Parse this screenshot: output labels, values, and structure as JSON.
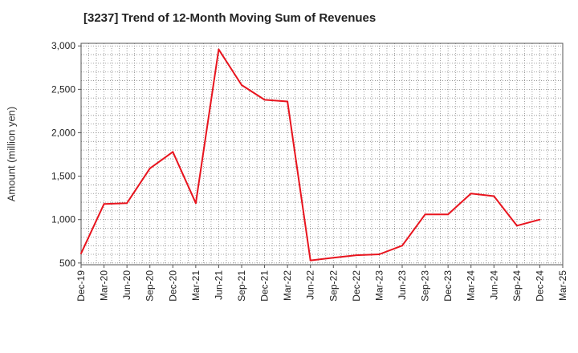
{
  "chart_data": {
    "type": "line",
    "title": "[3237]  Trend of 12-Month Moving Sum of Revenues",
    "xlabel": "",
    "ylabel": "Amount (million yen)",
    "x": [
      "Dec-19",
      "Mar-20",
      "Jun-20",
      "Sep-20",
      "Dec-20",
      "Mar-21",
      "Jun-21",
      "Sep-21",
      "Dec-21",
      "Mar-22",
      "Jun-22",
      "Sep-22",
      "Dec-22",
      "Mar-23",
      "Jun-23",
      "Sep-23",
      "Dec-23",
      "Mar-24",
      "Jun-24",
      "Sep-24",
      "Dec-24",
      "Mar-25"
    ],
    "series": [
      {
        "name": "",
        "color": "#e8141e",
        "values": [
          610,
          1180,
          1190,
          1590,
          1780,
          1190,
          2960,
          2550,
          2380,
          2360,
          530,
          560,
          590,
          600,
          700,
          1060,
          1060,
          1300,
          1270,
          930,
          1000,
          null
        ]
      }
    ],
    "ylim": [
      480,
      3030
    ],
    "yticks": [
      500,
      1000,
      1500,
      2000,
      2500,
      3000
    ],
    "ytick_labels": [
      "500",
      "1,000",
      "1,500",
      "2,000",
      "2,500",
      "3,000"
    ],
    "grid": true,
    "legend": "none"
  }
}
